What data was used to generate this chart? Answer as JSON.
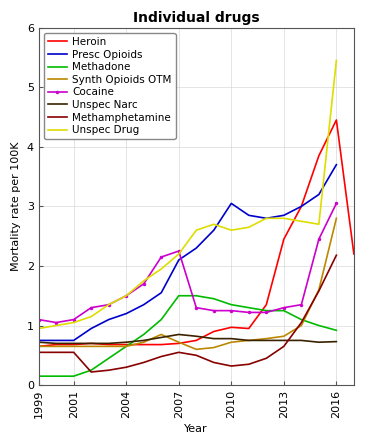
{
  "title": "Individual drugs",
  "xlabel": "Year",
  "ylabel": "Mortality rate per 100K",
  "ylim": [
    0,
    6
  ],
  "yticks": [
    0,
    1,
    2,
    3,
    4,
    5,
    6
  ],
  "years": [
    1999,
    2000,
    2001,
    2002,
    2003,
    2004,
    2005,
    2006,
    2007,
    2008,
    2009,
    2010,
    2011,
    2012,
    2013,
    2014,
    2015,
    2016,
    2017
  ],
  "xticks": [
    1999,
    2001,
    2004,
    2007,
    2010,
    2013,
    2016
  ],
  "series": [
    {
      "label": "Heroin",
      "color": "#ff0000",
      "marker": null,
      "linewidth": 1.2,
      "data": [
        0.65,
        0.68,
        0.68,
        0.7,
        0.68,
        0.68,
        0.68,
        0.68,
        0.7,
        0.75,
        0.9,
        0.97,
        0.95,
        1.35,
        2.45,
        3.0,
        3.85,
        4.45,
        2.2
      ]
    },
    {
      "label": "Presc Opioids",
      "color": "#0000cc",
      "marker": null,
      "linewidth": 1.2,
      "data": [
        0.75,
        0.75,
        0.75,
        0.95,
        1.1,
        1.2,
        1.35,
        1.55,
        2.1,
        2.3,
        2.6,
        3.05,
        2.85,
        2.8,
        2.85,
        3.0,
        3.2,
        3.7,
        null
      ]
    },
    {
      "label": "Methadone",
      "color": "#00bb00",
      "marker": null,
      "linewidth": 1.2,
      "data": [
        0.15,
        0.15,
        0.15,
        0.25,
        0.45,
        0.65,
        0.85,
        1.1,
        1.5,
        1.5,
        1.45,
        1.35,
        1.3,
        1.25,
        1.25,
        1.1,
        1.0,
        0.92,
        null
      ]
    },
    {
      "label": "Synth Opioids OTM",
      "color": "#bb8800",
      "marker": null,
      "linewidth": 1.2,
      "data": [
        0.65,
        0.65,
        0.65,
        0.65,
        0.65,
        0.65,
        0.72,
        0.85,
        0.72,
        0.6,
        0.63,
        0.72,
        0.75,
        0.78,
        0.82,
        1.0,
        1.6,
        2.8,
        null
      ]
    },
    {
      "label": "Cocaine",
      "color": "#cc00cc",
      "marker": "o",
      "linewidth": 1.2,
      "data": [
        1.1,
        1.05,
        1.1,
        1.3,
        1.35,
        1.5,
        1.7,
        2.15,
        2.25,
        1.3,
        1.25,
        1.25,
        1.22,
        1.22,
        1.3,
        1.35,
        2.45,
        3.05,
        null
      ]
    },
    {
      "label": "Unspec Narc",
      "color": "#3a2200",
      "marker": null,
      "linewidth": 1.2,
      "data": [
        0.72,
        0.7,
        0.7,
        0.7,
        0.7,
        0.72,
        0.75,
        0.8,
        0.85,
        0.82,
        0.78,
        0.78,
        0.75,
        0.75,
        0.75,
        0.75,
        0.72,
        0.73,
        null
      ]
    },
    {
      "label": "Methamphetamine",
      "color": "#880000",
      "marker": null,
      "linewidth": 1.2,
      "data": [
        0.55,
        0.55,
        0.55,
        0.22,
        0.25,
        0.3,
        0.38,
        0.48,
        0.55,
        0.5,
        0.38,
        0.32,
        0.35,
        0.45,
        0.65,
        1.05,
        1.58,
        2.18,
        null
      ]
    },
    {
      "label": "Unspec Drug",
      "color": "#dddd00",
      "marker": null,
      "linewidth": 1.2,
      "data": [
        0.95,
        1.0,
        1.05,
        1.15,
        1.35,
        1.5,
        1.75,
        1.95,
        2.2,
        2.6,
        2.7,
        2.6,
        2.65,
        2.8,
        2.8,
        2.75,
        2.7,
        5.45,
        null
      ]
    }
  ],
  "background_color": "#ffffff",
  "title_fontsize": 10,
  "axis_fontsize": 8,
  "tick_fontsize": 8,
  "legend_fontsize": 7.5
}
